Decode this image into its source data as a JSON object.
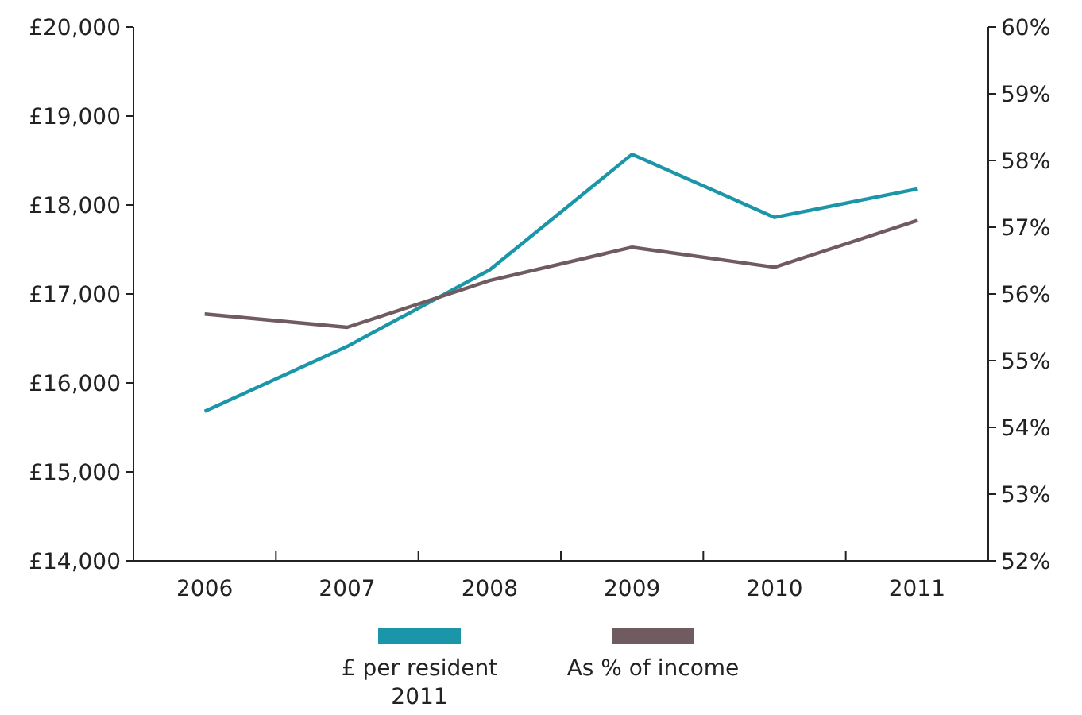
{
  "chart_data": {
    "type": "line",
    "categories": [
      "2006",
      "2007",
      "2008",
      "2009",
      "2010",
      "2011"
    ],
    "series": [
      {
        "name": "£ per resident 2011",
        "color": "#1a96a8",
        "values": [
          15680,
          16410,
          17270,
          18570,
          17860,
          18180
        ]
      },
      {
        "name": "As % of income",
        "color": "#6f5b60",
        "axis": "y2",
        "values": [
          55.7,
          55.5,
          56.2,
          56.7,
          56.4,
          57.1
        ]
      }
    ],
    "ylim": [
      14000,
      20000
    ],
    "yticks": [
      {
        "value": 14000,
        "label": "£14,000"
      },
      {
        "value": 15000,
        "label": "£15,000"
      },
      {
        "value": 16000,
        "label": "£16,000"
      },
      {
        "value": 17000,
        "label": "£17,000"
      },
      {
        "value": 18000,
        "label": "£18,000"
      },
      {
        "value": 19000,
        "label": "£19,000"
      },
      {
        "value": 20000,
        "label": "£20,000"
      }
    ],
    "y2lim": [
      52,
      60
    ],
    "y2ticks": [
      {
        "value": 52,
        "label": "52%"
      },
      {
        "value": 53,
        "label": "53%"
      },
      {
        "value": 54,
        "label": "54%"
      },
      {
        "value": 55,
        "label": "55%"
      },
      {
        "value": 56,
        "label": "56%"
      },
      {
        "value": 57,
        "label": "57%"
      },
      {
        "value": 58,
        "label": "58%"
      },
      {
        "value": 59,
        "label": "59%"
      },
      {
        "value": 60,
        "label": "60%"
      }
    ],
    "grid": false,
    "legend": "bottom",
    "marker": "none",
    "line_style": "solid"
  }
}
